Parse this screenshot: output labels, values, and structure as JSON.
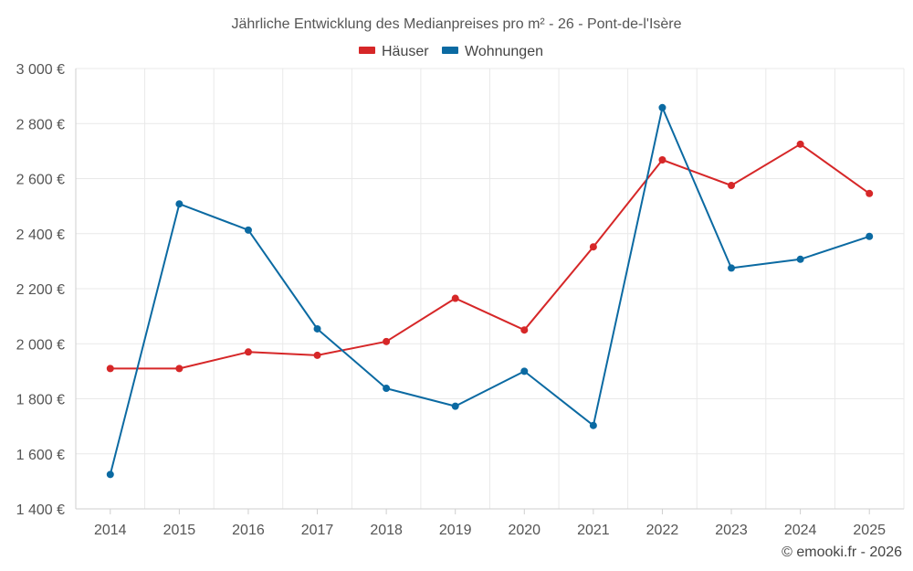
{
  "chart_data": {
    "type": "line",
    "title": "Jährliche Entwicklung des Medianpreises pro m² - 26 - Pont-de-l'Isère",
    "xlabel": "",
    "ylabel": "",
    "categories": [
      "2014",
      "2015",
      "2016",
      "2017",
      "2018",
      "2019",
      "2020",
      "2021",
      "2022",
      "2023",
      "2024",
      "2025"
    ],
    "ylim": [
      1400,
      3000
    ],
    "yticks": [
      1400,
      1600,
      1800,
      2000,
      2200,
      2400,
      2600,
      2800,
      3000
    ],
    "ytick_labels": [
      "1 400 €",
      "1 600 €",
      "1 800 €",
      "2 000 €",
      "2 200 €",
      "2 400 €",
      "2 600 €",
      "2 800 €",
      "3 000 €"
    ],
    "legend_position": "top-center",
    "grid": true,
    "series": [
      {
        "name": "Häuser",
        "color": "#d62728",
        "values": [
          1910,
          1910,
          1970,
          1958,
          2008,
          2165,
          2050,
          2352,
          2668,
          2575,
          2725,
          2546
        ]
      },
      {
        "name": "Wohnungen",
        "color": "#0b6aa2",
        "values": [
          1525,
          2508,
          2413,
          2054,
          1838,
          1773,
          1900,
          1703,
          2858,
          2275,
          2307,
          2390
        ]
      }
    ],
    "credit": "© emooki.fr - 2026"
  }
}
